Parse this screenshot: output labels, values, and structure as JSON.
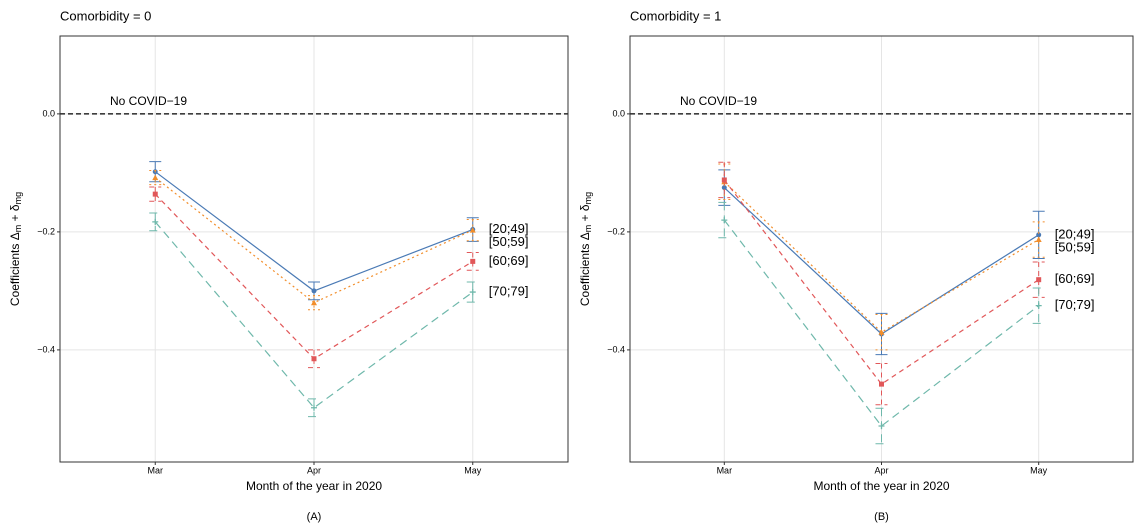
{
  "chart_data": [
    {
      "type": "line",
      "title": "Comorbidity = 0",
      "panel_label": "(A)",
      "x_label": "Month of the year in 2020",
      "y_label": [
        "Coefficients Δ",
        "m",
        " + δ",
        "mg"
      ],
      "categories": [
        "Mar",
        "Apr",
        "May"
      ],
      "ylim": [
        -0.59,
        0.132
      ],
      "yticks": [
        {
          "value": 0,
          "label": "0.0"
        },
        {
          "value": -0.2,
          "label": "−0.2"
        },
        {
          "value": -0.4,
          "label": "−0.4"
        }
      ],
      "grid": true,
      "hline": 0,
      "hline_label": "No COVID−19",
      "series": [
        {
          "name": "[20;49]",
          "color": "#4a7ab5",
          "dash": "solid",
          "marker": "circle",
          "values": [
            -0.098,
            -0.3,
            -0.196
          ],
          "errors": [
            0.017,
            0.015,
            0.02
          ]
        },
        {
          "name": "[50;59]",
          "color": "#f28e2b",
          "dash": "dotted",
          "marker": "triangle",
          "values": [
            -0.108,
            -0.32,
            -0.197
          ],
          "errors": [
            0.012,
            0.012,
            0.018
          ]
        },
        {
          "name": "[60;69]",
          "color": "#e15759",
          "dash": "dashed",
          "marker": "square",
          "values": [
            -0.136,
            -0.415,
            -0.25
          ],
          "errors": [
            0.012,
            0.015,
            0.015
          ]
        },
        {
          "name": "[70;79]",
          "color": "#6fb8ab",
          "dash": "longdash",
          "marker": "plus",
          "values": [
            -0.183,
            -0.498,
            -0.302
          ],
          "errors": [
            0.015,
            0.015,
            0.017
          ]
        }
      ]
    },
    {
      "type": "line",
      "title": "Comorbidity = 1",
      "panel_label": "(B)",
      "x_label": "Month of the year in 2020",
      "y_label": [
        "Coefficients Δ",
        "m",
        " + δ",
        "mg"
      ],
      "categories": [
        "Mar",
        "Apr",
        "May"
      ],
      "ylim": [
        -0.59,
        0.132
      ],
      "yticks": [
        {
          "value": 0,
          "label": "0.0"
        },
        {
          "value": -0.2,
          "label": "−0.2"
        },
        {
          "value": -0.4,
          "label": "−0.4"
        }
      ],
      "grid": true,
      "hline": 0,
      "hline_label": "No COVID−19",
      "series": [
        {
          "name": "[20;49]",
          "color": "#4a7ab5",
          "dash": "solid",
          "marker": "circle",
          "values": [
            -0.125,
            -0.373,
            -0.205
          ],
          "errors": [
            0.03,
            0.035,
            0.04
          ]
        },
        {
          "name": "[50;59]",
          "color": "#f28e2b",
          "dash": "dotted",
          "marker": "triangle",
          "values": [
            -0.115,
            -0.37,
            -0.213
          ],
          "errors": [
            0.03,
            0.03,
            0.03
          ]
        },
        {
          "name": "[60;69]",
          "color": "#e15759",
          "dash": "dashed",
          "marker": "square",
          "values": [
            -0.112,
            -0.458,
            -0.281
          ],
          "errors": [
            0.03,
            0.035,
            0.03
          ]
        },
        {
          "name": "[70;79]",
          "color": "#6fb8ab",
          "dash": "longdash",
          "marker": "plus",
          "values": [
            -0.18,
            -0.529,
            -0.325
          ],
          "errors": [
            0.03,
            0.03,
            0.03
          ]
        }
      ]
    }
  ]
}
